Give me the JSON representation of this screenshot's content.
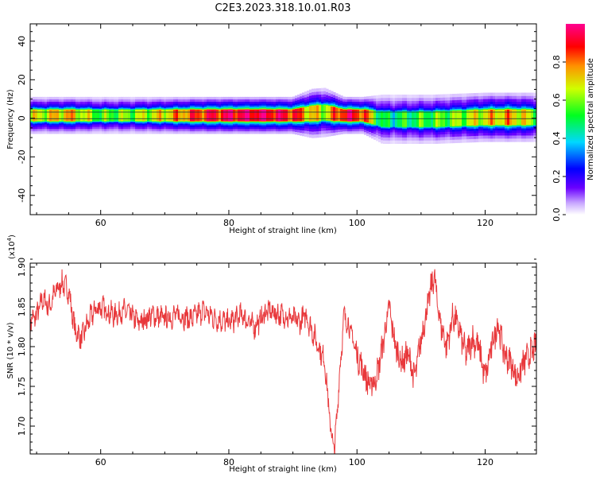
{
  "title": "C2E3.2023.318.10.01.R03",
  "chart_data": [
    {
      "type": "heatmap",
      "xlabel": "Height of straight line (km)",
      "ylabel": "Frequency (Hz)",
      "xlim": [
        49,
        128
      ],
      "ylim": [
        -50,
        49
      ],
      "x_ticks": [
        60,
        80,
        100,
        120
      ],
      "y_ticks": [
        40,
        20,
        0,
        -20,
        -40
      ],
      "colorbar": {
        "label": "Normalized spectral amplitude",
        "range": [
          0,
          1
        ],
        "ticks": [
          "0.0",
          "0.2",
          "0.4",
          "0.6",
          "0.8"
        ]
      },
      "band": [
        {
          "x": 50,
          "center": 1.5,
          "width": 3.0,
          "peak": 0.65
        },
        {
          "x": 55,
          "center": 1.5,
          "width": 3.0,
          "peak": 0.75
        },
        {
          "x": 60,
          "center": 1.5,
          "width": 3.0,
          "peak": 0.55
        },
        {
          "x": 65,
          "center": 1.5,
          "width": 3.0,
          "peak": 0.6
        },
        {
          "x": 70,
          "center": 1.5,
          "width": 3.0,
          "peak": 0.7
        },
        {
          "x": 75,
          "center": 1.5,
          "width": 3.0,
          "peak": 0.85
        },
        {
          "x": 80,
          "center": 1.5,
          "width": 3.0,
          "peak": 0.92
        },
        {
          "x": 85,
          "center": 1.5,
          "width": 3.0,
          "peak": 0.95
        },
        {
          "x": 90,
          "center": 1.5,
          "width": 3.0,
          "peak": 0.88
        },
        {
          "x": 93,
          "center": 2.5,
          "width": 4.0,
          "peak": 0.7
        },
        {
          "x": 95,
          "center": 3.0,
          "width": 4.0,
          "peak": 0.65
        },
        {
          "x": 98,
          "center": 1.5,
          "width": 3.0,
          "peak": 0.92
        },
        {
          "x": 101,
          "center": 1.5,
          "width": 3.0,
          "peak": 0.85
        },
        {
          "x": 104,
          "center": -0.5,
          "width": 4.0,
          "peak": 0.45
        },
        {
          "x": 108,
          "center": -0.5,
          "width": 4.0,
          "peak": 0.5
        },
        {
          "x": 112,
          "center": -0.5,
          "width": 4.0,
          "peak": 0.55
        },
        {
          "x": 116,
          "center": 0.0,
          "width": 4.0,
          "peak": 0.6
        },
        {
          "x": 120,
          "center": 0.5,
          "width": 4.0,
          "peak": 0.7
        },
        {
          "x": 124,
          "center": 0.5,
          "width": 4.0,
          "peak": 0.75
        },
        {
          "x": 128,
          "center": 0.5,
          "width": 4.0,
          "peak": 0.6
        }
      ]
    },
    {
      "type": "line",
      "xlabel": "Height of straight line (km)",
      "ylabel": "SNR (10 * v/v)",
      "y_multiplier": "(x10^4)",
      "xlim": [
        49,
        128
      ],
      "ylim": [
        1.665,
        1.905
      ],
      "x_ticks": [
        60,
        80,
        100,
        120
      ],
      "y_ticks": [
        "1.70",
        "1.75",
        "1.80",
        "1.85",
        "1.90"
      ],
      "color": "#e8383b",
      "series": [
        {
          "x": [
            49,
            50,
            51,
            52,
            53,
            54,
            55,
            56,
            57,
            58,
            59,
            60,
            62,
            64,
            66,
            68,
            70,
            72,
            74,
            76,
            78,
            80,
            82,
            84,
            86,
            88,
            90,
            91,
            92,
            93,
            94,
            95,
            95.5,
            96,
            96.5,
            97,
            97.5,
            98,
            99,
            100,
            101,
            102,
            103,
            104,
            105,
            106,
            107,
            108,
            109,
            110,
            111,
            112,
            113,
            114,
            115,
            116,
            117,
            118,
            119,
            120,
            121,
            122,
            123,
            124,
            125,
            126,
            127,
            128
          ],
          "values": [
            1.83,
            1.84,
            1.86,
            1.85,
            1.87,
            1.88,
            1.87,
            1.82,
            1.81,
            1.83,
            1.845,
            1.85,
            1.84,
            1.845,
            1.83,
            1.84,
            1.835,
            1.84,
            1.835,
            1.845,
            1.835,
            1.83,
            1.84,
            1.825,
            1.845,
            1.84,
            1.835,
            1.83,
            1.84,
            1.82,
            1.8,
            1.78,
            1.73,
            1.69,
            1.67,
            1.73,
            1.79,
            1.84,
            1.82,
            1.79,
            1.77,
            1.75,
            1.76,
            1.8,
            1.85,
            1.8,
            1.78,
            1.79,
            1.76,
            1.81,
            1.85,
            1.89,
            1.83,
            1.8,
            1.84,
            1.82,
            1.79,
            1.81,
            1.8,
            1.76,
            1.8,
            1.83,
            1.79,
            1.78,
            1.76,
            1.78,
            1.79,
            1.8
          ]
        }
      ]
    }
  ]
}
